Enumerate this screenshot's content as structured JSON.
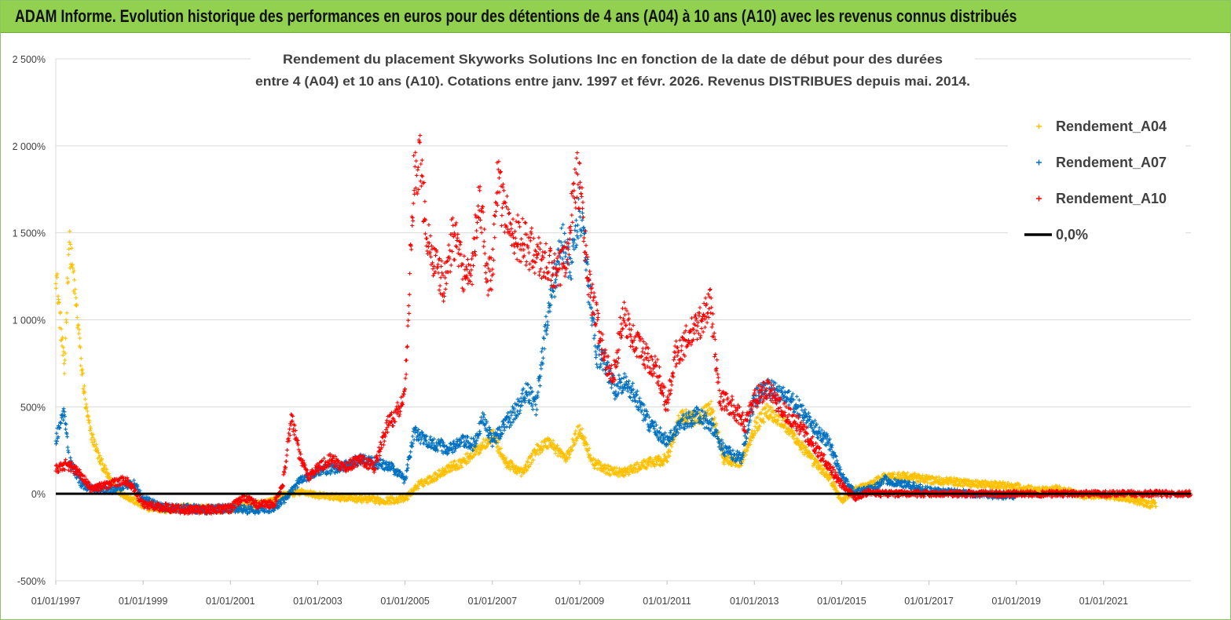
{
  "header": {
    "title": "ADAM Informe. Evolution historique des performances en euros pour des détentions de 4 ans (A04) à 10 ans (A10) avec les revenus connus distribués"
  },
  "chart_data": {
    "type": "scatter",
    "title_lines": [
      "Rendement du placement Skyworks Solutions Inc en fonction de la date de début pour des durées",
      "entre 4 (A04) et 10 ans (A10).  Cotations entre janv. 1997 et févr. 2026. Revenus DISTRIBUES depuis mai. 2014."
    ],
    "xlabel": "",
    "ylabel": "",
    "x_range": [
      1997.0,
      2023.0
    ],
    "ylim": [
      -500,
      2500
    ],
    "y_ticks": [
      -500,
      0,
      500,
      1000,
      1500,
      2000,
      2500
    ],
    "y_tick_labels": [
      "-500%",
      "0%",
      "500%",
      "1 000%",
      "1 500%",
      "2 000%",
      "2 500%"
    ],
    "x_ticks": [
      1997,
      1999,
      2001,
      2003,
      2005,
      2007,
      2009,
      2011,
      2013,
      2015,
      2017,
      2019,
      2021
    ],
    "x_tick_labels": [
      "01/01/1997",
      "01/01/1999",
      "01/01/2001",
      "01/01/2003",
      "01/01/2005",
      "01/01/2007",
      "01/01/2009",
      "01/01/2011",
      "01/01/2013",
      "01/01/2015",
      "01/01/2017",
      "01/01/2019",
      "01/01/2021"
    ],
    "grid": "horizontal",
    "legend_position": "top-right",
    "legend": [
      {
        "label": "Rendement_A04",
        "color": "#ffc000",
        "marker": "+"
      },
      {
        "label": "Rendement_A07",
        "color": "#0070c0",
        "marker": "+"
      },
      {
        "label": "Rendement_A10",
        "color": "#ff0000",
        "marker": "+"
      },
      {
        "label": "0,0%",
        "color": "#000000",
        "marker": "line"
      }
    ],
    "series": [
      {
        "name": "Rendement_A04",
        "color": "#ffc000",
        "x": [
          1997.0,
          1997.1,
          1997.2,
          1997.3,
          1997.4,
          1997.5,
          1997.6,
          1997.7,
          1997.8,
          1997.9,
          1998.0,
          1998.2,
          1998.4,
          1998.6,
          1998.8,
          1999.0,
          1999.5,
          2000.0,
          2000.5,
          2001.0,
          2001.5,
          2002.0,
          2002.3,
          2002.7,
          2003.0,
          2003.5,
          2004.0,
          2004.5,
          2005.0,
          2005.3,
          2005.7,
          2006.0,
          2006.3,
          2006.7,
          2007.0,
          2007.3,
          2007.7,
          2008.0,
          2008.3,
          2008.7,
          2009.0,
          2009.3,
          2009.7,
          2010.0,
          2010.5,
          2011.0,
          2011.3,
          2011.7,
          2012.0,
          2012.3,
          2012.7,
          2013.0,
          2013.3,
          2013.7,
          2014.0,
          2014.3,
          2014.7,
          2015.0,
          2015.3,
          2015.7,
          2016.0,
          2016.5,
          2017.0,
          2017.5,
          2018.0,
          2018.5,
          2019.0,
          2019.5,
          2020.0,
          2020.5,
          2021.0,
          2021.5,
          2022.0,
          2022.2
        ],
        "y": [
          1300,
          1000,
          700,
          1450,
          1250,
          1000,
          700,
          480,
          350,
          280,
          200,
          100,
          20,
          -10,
          -40,
          -70,
          -90,
          -80,
          -90,
          -85,
          -70,
          -40,
          0,
          10,
          -10,
          -20,
          -30,
          -40,
          -30,
          50,
          100,
          150,
          180,
          260,
          340,
          180,
          120,
          250,
          300,
          200,
          380,
          180,
          130,
          120,
          170,
          200,
          450,
          420,
          500,
          200,
          180,
          380,
          480,
          400,
          300,
          200,
          100,
          -40,
          20,
          60,
          100,
          100,
          80,
          70,
          60,
          50,
          40,
          20,
          30,
          -10,
          -10,
          -20,
          -60,
          -55
        ],
        "spread": 0.06
      },
      {
        "name": "Rendement_A07",
        "color": "#0070c0",
        "x": [
          1997.0,
          1997.1,
          1997.2,
          1997.3,
          1997.4,
          1997.6,
          1997.8,
          1998.0,
          1998.3,
          1998.6,
          1998.8,
          1999.0,
          1999.5,
          2000.0,
          2000.5,
          2001.0,
          2001.5,
          2002.0,
          2002.3,
          2002.6,
          2003.0,
          2003.5,
          2004.0,
          2004.3,
          2004.7,
          2005.0,
          2005.2,
          2005.5,
          2005.8,
          2006.0,
          2006.3,
          2006.6,
          2006.8,
          2007.0,
          2007.3,
          2007.6,
          2007.8,
          2008.0,
          2008.2,
          2008.4,
          2008.6,
          2008.8,
          2009.0,
          2009.2,
          2009.4,
          2009.6,
          2009.8,
          2010.0,
          2010.3,
          2010.6,
          2011.0,
          2011.3,
          2011.7,
          2012.0,
          2012.3,
          2012.7,
          2013.0,
          2013.3,
          2013.6,
          2014.0,
          2014.3,
          2014.7,
          2015.0,
          2015.3,
          2015.7,
          2016.0,
          2016.3,
          2016.7,
          2017.0,
          2017.5,
          2018.0,
          2018.5,
          2019.0
        ],
        "y": [
          300,
          400,
          480,
          200,
          150,
          50,
          30,
          30,
          20,
          50,
          60,
          -30,
          -80,
          -85,
          -90,
          -85,
          -90,
          -80,
          -20,
          80,
          130,
          150,
          200,
          180,
          150,
          80,
          350,
          300,
          280,
          250,
          300,
          280,
          450,
          300,
          400,
          500,
          600,
          500,
          900,
          1200,
          1450,
          1300,
          1650,
          1200,
          800,
          750,
          600,
          650,
          550,
          400,
          300,
          400,
          450,
          400,
          250,
          200,
          550,
          600,
          580,
          500,
          400,
          300,
          100,
          10,
          30,
          80,
          60,
          40,
          20,
          10,
          0,
          -10,
          -10
        ],
        "spread": 0.07
      },
      {
        "name": "Rendement_A10",
        "color": "#ff0000",
        "x": [
          1997.0,
          1997.2,
          1997.4,
          1997.6,
          1997.8,
          1998.0,
          1998.3,
          1998.6,
          1998.8,
          1999.0,
          1999.5,
          2000.0,
          2000.5,
          2001.0,
          2001.3,
          2001.6,
          2002.0,
          2002.2,
          2002.4,
          2002.6,
          2002.8,
          2003.0,
          2003.3,
          2003.6,
          2004.0,
          2004.3,
          2004.6,
          2004.9,
          2005.0,
          2005.1,
          2005.2,
          2005.35,
          2005.5,
          2005.7,
          2005.9,
          2006.1,
          2006.3,
          2006.5,
          2006.7,
          2006.9,
          2007.0,
          2007.1,
          2007.3,
          2007.5,
          2007.7,
          2007.9,
          2008.1,
          2008.3,
          2008.5,
          2008.7,
          2008.9,
          2009.0,
          2009.2,
          2009.4,
          2009.6,
          2009.8,
          2010.0,
          2010.2,
          2010.5,
          2010.8,
          2011.0,
          2011.2,
          2011.5,
          2011.8,
          2012.0,
          2012.2,
          2012.5,
          2012.8,
          2013.0,
          2013.3,
          2013.6,
          2014.0,
          2014.3,
          2014.6,
          2015.0,
          2015.3,
          2015.6,
          2016.0,
          2016.5,
          2017.0,
          2018.0,
          2019.0,
          2020.0,
          2021.0,
          2022.0,
          2023.0
        ],
        "y": [
          140,
          170,
          150,
          100,
          30,
          40,
          60,
          80,
          20,
          -60,
          -80,
          -90,
          -90,
          -85,
          -20,
          -60,
          -60,
          50,
          450,
          200,
          100,
          150,
          200,
          150,
          200,
          150,
          400,
          500,
          600,
          1200,
          1800,
          1900,
          1500,
          1300,
          1200,
          1500,
          1300,
          1200,
          1700,
          1250,
          1300,
          1800,
          1600,
          1500,
          1450,
          1400,
          1350,
          1300,
          1250,
          1400,
          1800,
          1800,
          1200,
          1000,
          750,
          700,
          1050,
          900,
          800,
          700,
          500,
          800,
          900,
          1000,
          1100,
          550,
          500,
          400,
          550,
          600,
          500,
          400,
          300,
          200,
          50,
          -20,
          10,
          0,
          0,
          0,
          0,
          0,
          0,
          0,
          0,
          0
        ],
        "spread": 0.08
      },
      {
        "name": "0,0%",
        "color": "#000000",
        "x": [
          1997.0,
          2023.0
        ],
        "y": [
          0,
          0
        ]
      }
    ]
  }
}
